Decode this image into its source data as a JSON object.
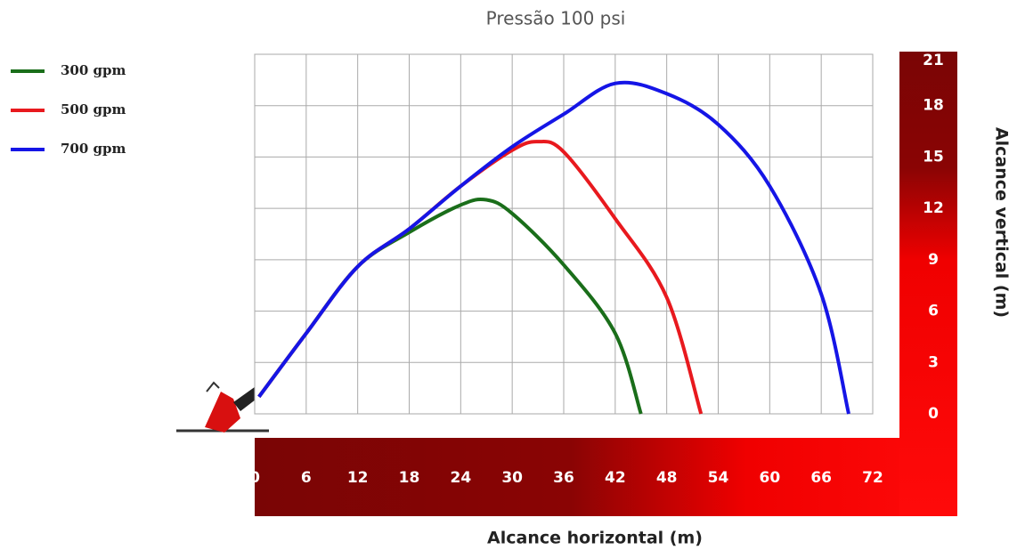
{
  "chart_data": {
    "type": "line",
    "title": "Pressão 100 psi",
    "xlabel": "Alcance horizontal (m)",
    "ylabel": "Alcance vertical (m)",
    "xlim": [
      0,
      72
    ],
    "ylim": [
      0,
      21
    ],
    "xticks": [
      0,
      6,
      12,
      18,
      24,
      30,
      36,
      42,
      48,
      54,
      60,
      66,
      72
    ],
    "yticks": [
      0,
      3,
      6,
      9,
      12,
      15,
      18,
      21
    ],
    "grid": true,
    "legend": "upper left",
    "series": [
      {
        "name": "300 gpm",
        "color": "#1a6e1a",
        "x": [
          0.5,
          6,
          12,
          18,
          24,
          27,
          30,
          36,
          42,
          45
        ],
        "values": [
          1,
          4.7,
          8.6,
          10.6,
          12.2,
          12.5,
          11.7,
          8.7,
          4.7,
          0
        ]
      },
      {
        "name": "500 gpm",
        "color": "#e8191e",
        "x": [
          0.5,
          6,
          12,
          18,
          24,
          30,
          33,
          36,
          42,
          48,
          52
        ],
        "values": [
          1,
          4.7,
          8.6,
          10.8,
          13.3,
          15.4,
          15.9,
          15.3,
          11.4,
          6.8,
          0
        ]
      },
      {
        "name": "700 gpm",
        "color": "#1515e6",
        "x": [
          0.5,
          6,
          12,
          18,
          24,
          30,
          36,
          42,
          48,
          54,
          60,
          66,
          69.2
        ],
        "values": [
          1,
          4.7,
          8.6,
          10.8,
          13.3,
          15.6,
          17.5,
          19.3,
          18.7,
          16.9,
          13.3,
          7,
          0
        ]
      }
    ]
  }
}
